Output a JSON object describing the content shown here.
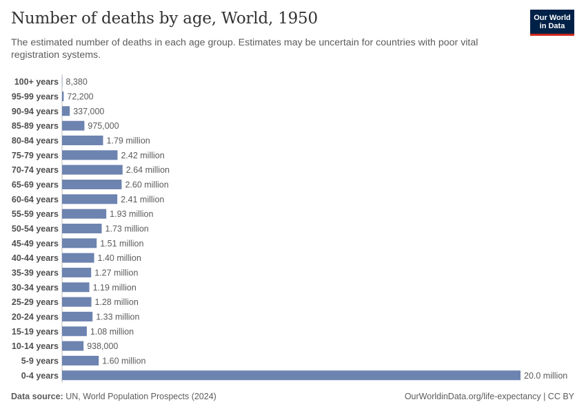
{
  "header": {
    "title": "Number of deaths by age, World, 1950",
    "subtitle": "The estimated number of deaths in each age group. Estimates may be uncertain for countries with poor vital registration systems.",
    "logo_line1": "Our World",
    "logo_line2": "in Data"
  },
  "footer": {
    "source_label": "Data source:",
    "source_text": " UN, World Population Prospects (2024)",
    "url_text": "OurWorldinData.org/life-expectancy | CC BY"
  },
  "colors": {
    "bar": "#6d83b0",
    "logo_bg": "#002147",
    "logo_accent": "#ce261e"
  },
  "chart_data": {
    "type": "bar",
    "orientation": "horizontal",
    "title": "Number of deaths by age, World, 1950",
    "categories": [
      "100+ years",
      "95-99 years",
      "90-94 years",
      "85-89 years",
      "80-84 years",
      "75-79 years",
      "70-74 years",
      "65-69 years",
      "60-64 years",
      "55-59 years",
      "50-54 years",
      "45-49 years",
      "40-44 years",
      "35-39 years",
      "30-34 years",
      "25-29 years",
      "20-24 years",
      "15-19 years",
      "10-14 years",
      "5-9 years",
      "0-4 years"
    ],
    "values": [
      8380,
      72200,
      337000,
      975000,
      1790000,
      2420000,
      2640000,
      2600000,
      2410000,
      1930000,
      1730000,
      1510000,
      1400000,
      1270000,
      1190000,
      1280000,
      1330000,
      1080000,
      938000,
      1600000,
      20000000
    ],
    "value_labels": [
      "8,380",
      "72,200",
      "337,000",
      "975,000",
      "1.79 million",
      "2.42 million",
      "2.64 million",
      "2.60 million",
      "2.41 million",
      "1.93 million",
      "1.73 million",
      "1.51 million",
      "1.40 million",
      "1.27 million",
      "1.19 million",
      "1.28 million",
      "1.33 million",
      "1.08 million",
      "938,000",
      "1.60 million",
      "20.0 million"
    ],
    "xlim": [
      0,
      20000000
    ],
    "grid": false,
    "legend": "none"
  }
}
